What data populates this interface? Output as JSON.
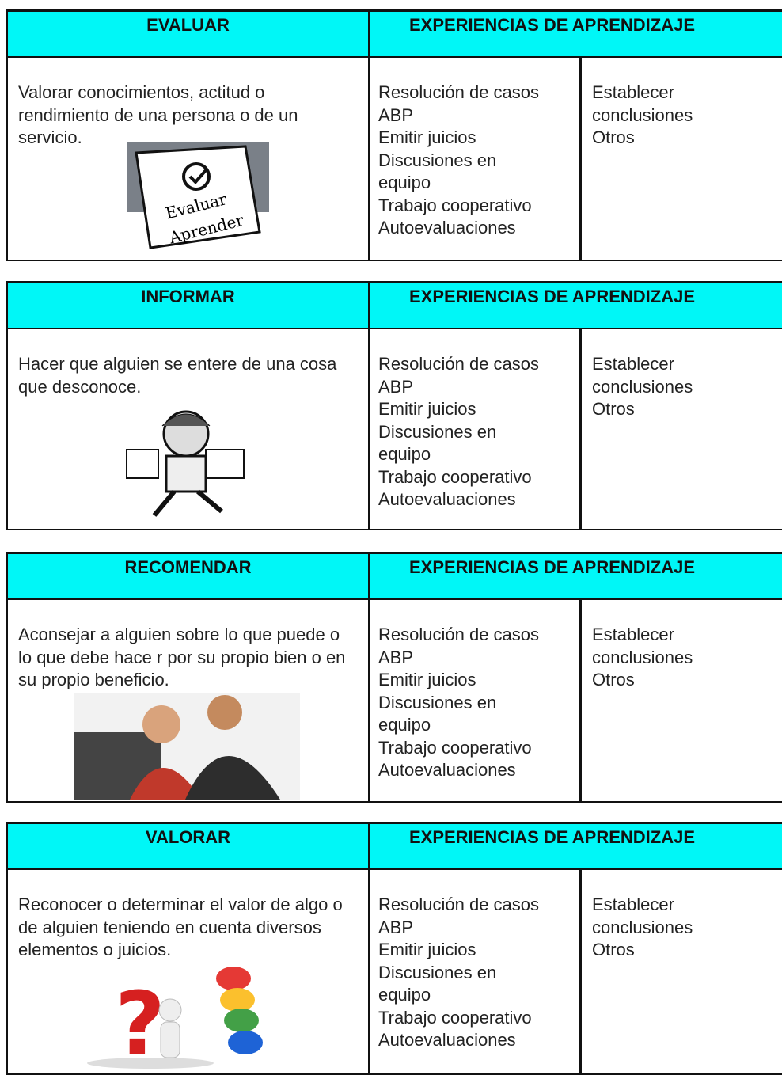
{
  "tables": [
    {
      "header": "EVALUAR",
      "experiences_header": "EXPERIENCIAS DE APRENDIZAJE",
      "description": "Valorar conocimientos, actitud o rendimiento de una persona o de un servicio.",
      "experiences": [
        "Resolución de casos",
        "ABP",
        "Emitir juicios",
        "Discusiones en",
        "equipo",
        "Trabajo cooperativo",
        "Autoevaluaciones"
      ],
      "others": [
        "Establecer",
        "conclusiones",
        "Otros"
      ]
    },
    {
      "header": "INFORMAR",
      "experiences_header": "EXPERIENCIAS DE APRENDIZAJE",
      "description": "Hacer que alguien se entere de una cosa que desconoce.",
      "experiences": [
        "Resolución de casos",
        "ABP",
        "Emitir juicios",
        "Discusiones en",
        "equipo",
        "Trabajo cooperativo",
        "Autoevaluaciones"
      ],
      "others": [
        "Establecer",
        "conclusiones",
        "Otros"
      ]
    },
    {
      "header": "RECOMENDAR",
      "experiences_header": "EXPERIENCIAS DE APRENDIZAJE",
      "description": "Aconsejar a alguien sobre lo que puede o lo que debe hace r por su propio bien o en su propio beneficio.",
      "experiences": [
        "Resolución de casos",
        "ABP",
        "Emitir juicios",
        "Discusiones en",
        "equipo",
        "Trabajo cooperativo",
        "Autoevaluaciones"
      ],
      "others": [
        "Establecer",
        "conclusiones",
        "Otros"
      ]
    },
    {
      "header": "VALORAR",
      "experiences_header": "EXPERIENCIAS DE APRENDIZAJE",
      "description": "Reconocer o determinar el valor de algo o de alguien teniendo en cuenta diversos elementos o juicios.",
      "experiences": [
        "Resolución de casos",
        "ABP",
        "Emitir juicios",
        "Discusiones en",
        "equipo",
        "Trabajo cooperativo",
        "Autoevaluaciones"
      ],
      "others": [
        "Establecer",
        "conclusiones",
        "Otros"
      ]
    }
  ]
}
